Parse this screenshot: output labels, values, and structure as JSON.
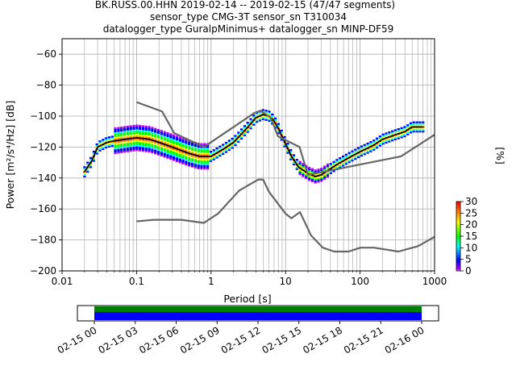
{
  "chart_data": {
    "type": "heatmap",
    "title_lines": [
      "BK.RUSS.00.HHN   2019-02-14 -- 2019-02-15  (47/47 segments)",
      "sensor_type CMG-3T sensor_sn T310034",
      "datalogger_type GuralpMinimus+ datalogger_sn MINP-DF59"
    ],
    "xlabel": "Period [s]",
    "ylabel": "Power [m²/s⁴/Hz] [dB]",
    "xscale": "log",
    "xlim": [
      0.01,
      1000
    ],
    "ylim": [
      -200,
      -50
    ],
    "x_ticks": [
      0.01,
      0.1,
      1,
      10,
      100,
      1000
    ],
    "x_tick_labels": [
      "0.01",
      "0.1",
      "1",
      "10",
      "100",
      "1000"
    ],
    "y_ticks": [
      -200,
      -180,
      -160,
      -140,
      -120,
      -100,
      -80,
      -60
    ],
    "y_tick_labels": [
      "−200",
      "−180",
      "−160",
      "−140",
      "−120",
      "−100",
      "−80",
      "−60"
    ],
    "grid": true,
    "colorbar": {
      "label": "[%]",
      "ticks": [
        0,
        5,
        10,
        15,
        20,
        25,
        30
      ],
      "tick_labels": [
        "0",
        "5",
        "10",
        "15",
        "20",
        "25",
        "30"
      ],
      "range": [
        0,
        30
      ]
    },
    "series": [
      {
        "role": "mean",
        "color": "#000000",
        "points": [
          [
            0.02,
            -136
          ],
          [
            0.025,
            -129
          ],
          [
            0.03,
            -120
          ],
          [
            0.04,
            -117
          ],
          [
            0.05,
            -116
          ],
          [
            0.07,
            -115
          ],
          [
            0.1,
            -114
          ],
          [
            0.15,
            -115
          ],
          [
            0.2,
            -117
          ],
          [
            0.3,
            -120
          ],
          [
            0.5,
            -124
          ],
          [
            0.7,
            -126
          ],
          [
            1,
            -126
          ],
          [
            1.5,
            -121
          ],
          [
            2,
            -117
          ],
          [
            3,
            -108
          ],
          [
            4,
            -101
          ],
          [
            5,
            -99
          ],
          [
            6,
            -100
          ],
          [
            7,
            -103
          ],
          [
            8,
            -108
          ],
          [
            10,
            -118
          ],
          [
            12,
            -126
          ],
          [
            15,
            -133
          ],
          [
            20,
            -137
          ],
          [
            25,
            -139
          ],
          [
            30,
            -138
          ],
          [
            40,
            -134
          ],
          [
            50,
            -131
          ],
          [
            70,
            -127
          ],
          [
            100,
            -123
          ],
          [
            150,
            -119
          ],
          [
            200,
            -115
          ],
          [
            300,
            -112
          ],
          [
            400,
            -110
          ],
          [
            500,
            -107
          ],
          [
            700,
            -107
          ]
        ]
      },
      {
        "role": "noise-model-high",
        "color": "#666666",
        "points": [
          [
            0.1,
            -91
          ],
          [
            0.22,
            -97
          ],
          [
            0.32,
            -111
          ],
          [
            0.8,
            -120
          ],
          [
            3.8,
            -98
          ],
          [
            4.6,
            -96.5
          ],
          [
            6.3,
            -101
          ],
          [
            7.9,
            -113
          ],
          [
            15.4,
            -120
          ],
          [
            20,
            -138
          ],
          [
            354,
            -126
          ],
          [
            1000,
            -112
          ]
        ]
      },
      {
        "role": "noise-model-low",
        "color": "#666666",
        "points": [
          [
            0.1,
            -168
          ],
          [
            0.17,
            -167
          ],
          [
            0.4,
            -167
          ],
          [
            0.8,
            -169
          ],
          [
            1.24,
            -163
          ],
          [
            2.4,
            -148
          ],
          [
            4.3,
            -141
          ],
          [
            5,
            -141
          ],
          [
            6,
            -149
          ],
          [
            10,
            -163
          ],
          [
            12,
            -166
          ],
          [
            15.6,
            -162
          ],
          [
            21.9,
            -177
          ],
          [
            31.6,
            -185
          ],
          [
            45,
            -187.5
          ],
          [
            70,
            -187.5
          ],
          [
            101,
            -185
          ],
          [
            154,
            -185
          ],
          [
            328,
            -187.5
          ],
          [
            600,
            -184
          ],
          [
            1000,
            -178
          ]
        ]
      }
    ],
    "time_axis": {
      "tick_labels": [
        "02-15 00",
        "02-15 03",
        "02-15 06",
        "02-15 09",
        "02-15 12",
        "02-15 15",
        "02-15 18",
        "02-15 21",
        "02-16 00"
      ],
      "coverage_colors": [
        "#008000",
        "#0000ff"
      ]
    }
  }
}
